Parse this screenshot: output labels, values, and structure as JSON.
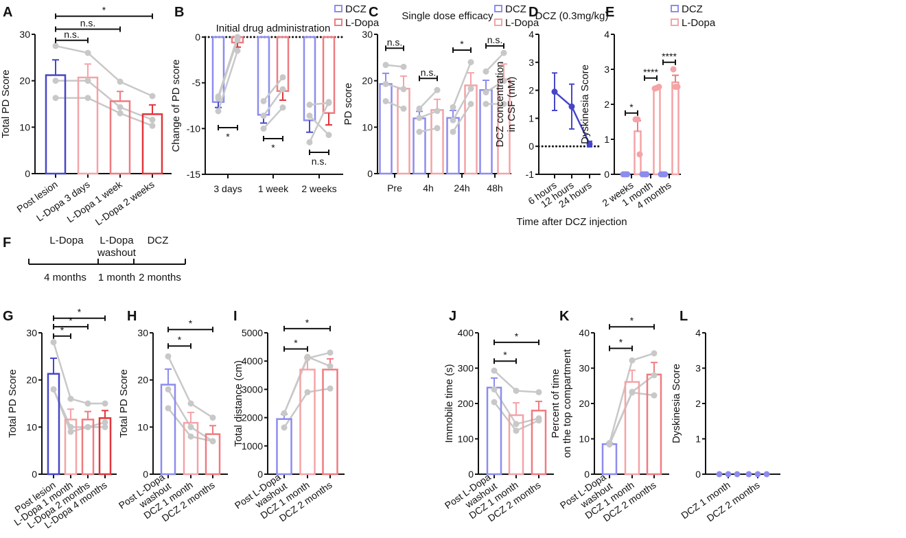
{
  "colors": {
    "dcz_dark": "#4646c8",
    "dcz_light": "#8c8cef",
    "ldopa_light": "#f4a3a6",
    "ldopa_mid": "#ef7b80",
    "ldopa_dark": "#e0353b",
    "subject_points": "#c8c8c8",
    "axis": "#111111"
  },
  "timeline": {
    "panel": "F",
    "phases": [
      {
        "label": [
          "L-Dopa"
        ],
        "duration": "4 months"
      },
      {
        "label": [
          "L-Dopa",
          "washout"
        ],
        "duration": "1 month"
      },
      {
        "label": [
          "DCZ"
        ],
        "duration": "2 months"
      }
    ]
  },
  "chart_data": [
    {
      "panel": "A",
      "type": "bar",
      "ylabel": [
        "Total PD Score"
      ],
      "ylim": [
        0,
        30
      ],
      "yticks": [
        0,
        10,
        20,
        30
      ],
      "categories": [
        [
          "Post lesion"
        ],
        [
          "L-Dopa 3 days"
        ],
        [
          "L-Dopa 1 week"
        ],
        [
          "L-Dopa 2 weeks"
        ]
      ],
      "bars": [
        {
          "mean": 21.2,
          "sem": 3.3,
          "color": "#4646c8"
        },
        {
          "mean": 20.7,
          "sem": 2.9,
          "color": "#f4a3a6"
        },
        {
          "mean": 15.6,
          "sem": 2.1,
          "color": "#ef7b80"
        },
        {
          "mean": 12.8,
          "sem": 2.0,
          "color": "#e0353b"
        }
      ],
      "subjects": [
        [
          27.5,
          26,
          19.8,
          16.7
        ],
        [
          20,
          20,
          14.3,
          11.6
        ],
        [
          16.3,
          16.3,
          13,
          10.3
        ]
      ],
      "brackets": [
        {
          "from": 0,
          "to": 1,
          "y": 28.7,
          "label": "n.s."
        },
        {
          "from": 0,
          "to": 2,
          "y": 31.1,
          "label": "n.s."
        },
        {
          "from": 0,
          "to": 3,
          "y": 33.9,
          "label": "*"
        }
      ]
    },
    {
      "panel": "B",
      "type": "grouped_bar",
      "title": "Initial drug administration",
      "ylabel": [
        "Change of PD score"
      ],
      "ylim": [
        -15,
        0
      ],
      "yticks": [
        -15,
        -10,
        -5,
        0
      ],
      "zero_line": true,
      "paired_lines": true,
      "categories": [
        [
          "3 days"
        ],
        [
          "1 week"
        ],
        [
          "2 weeks"
        ]
      ],
      "series": [
        {
          "name": "DCZ",
          "color": "#8c8cef",
          "err_color": "#4646c8",
          "means": [
            -7.1,
            -8.5,
            -9.1
          ],
          "sem": [
            0.6,
            0.9,
            1.3
          ],
          "points": [
            [
              -6.5,
              -6.7,
              -8.1
            ],
            [
              -7.0,
              -8.6,
              -10.0
            ],
            [
              -7.4,
              -8.6,
              -11.5
            ]
          ]
        },
        {
          "name": "L-Dopa",
          "color": "#ef7b80",
          "err_color": "#e0353b",
          "means": [
            -0.6,
            -5.9,
            -8.3
          ],
          "sem": [
            0.5,
            1.0,
            1.3
          ],
          "points": [
            [
              0,
              -0.3,
              -1.5
            ],
            [
              -4.4,
              -5.7,
              -7.7
            ],
            [
              -7.2,
              -10.7,
              -7.1
            ]
          ]
        }
      ],
      "brackets": [
        {
          "category": 0,
          "y": -9.9,
          "label": "*",
          "label_pos": "below"
        },
        {
          "category": 1,
          "y": -11.1,
          "label": "*",
          "label_pos": "below"
        },
        {
          "category": 2,
          "y": -12.6,
          "label": "n.s.",
          "label_pos": "below"
        }
      ],
      "legend": "top-right"
    },
    {
      "panel": "C",
      "type": "grouped_bar",
      "title": "Single dose efficacy",
      "ylabel": [
        "PD score"
      ],
      "ylim": [
        0,
        30
      ],
      "yticks": [
        0,
        10,
        20,
        30
      ],
      "paired_lines": true,
      "categories": [
        [
          "Pre"
        ],
        [
          "4h"
        ],
        [
          "24h"
        ],
        [
          "48h"
        ]
      ],
      "series": [
        {
          "name": "DCZ",
          "color": "#8c8cef",
          "err_color": "#8c8cef",
          "means": [
            19.3,
            11.9,
            12.0,
            18.0
          ],
          "sem": [
            2.3,
            1.5,
            1.6,
            2.1
          ],
          "points": [
            [
              23.4,
              19.3,
              15.6
            ],
            [
              14,
              12,
              9
            ],
            [
              14.3,
              11.5,
              9
            ]
          ]
        },
        {
          "name": "L-Dopa",
          "color": "#f4a3a6",
          "err_color": "#f4a3a6",
          "means": [
            18.3,
            13.7,
            19.0,
            20.3
          ],
          "sem": [
            2.7,
            2.3,
            2.7,
            3.3
          ],
          "points": [
            [
              23,
              18.2,
              14
            ],
            [
              18,
              13.5,
              9.8
            ],
            [
              24,
              18.3,
              15
            ]
          ]
        }
      ],
      "extra_points": {
        "DCZ": [
          [
            22,
            17.5,
            15
          ]
        ],
        "L-Dopa": [
          [
            26,
            20,
            15
          ]
        ]
      },
      "brackets": [
        {
          "category": 0,
          "y": 27,
          "label": "n.s.",
          "label_pos": "above"
        },
        {
          "category": 1,
          "y": 20.5,
          "label": "n.s.",
          "label_pos": "above"
        },
        {
          "category": 2,
          "y": 26.6,
          "label": "*",
          "label_pos": "above"
        },
        {
          "category": 3,
          "y": 27.5,
          "label": "n.s.",
          "label_pos": "above"
        }
      ],
      "legend": "top-right"
    },
    {
      "panel": "D",
      "type": "line",
      "title": "DCZ (0.3mg/kg)",
      "ylabel": [
        "DCZ concentration",
        "in CSF (nM)"
      ],
      "xlabel": "Time after DCZ injection",
      "ylim": [
        -1,
        4
      ],
      "yticks": [
        -1,
        0,
        1,
        2,
        3,
        4
      ],
      "zero_line": true,
      "categories": [
        [
          "6 hours"
        ],
        [
          "12 hours"
        ],
        [
          "24 hours"
        ]
      ],
      "series": [
        {
          "color": "#4646c8",
          "means": [
            1.95,
            1.42,
            0.08
          ],
          "sem": [
            0.67,
            0.8,
            0.1
          ]
        }
      ]
    },
    {
      "panel": "E",
      "type": "grouped_bar",
      "ylabel": [
        "Dyskinesia Score"
      ],
      "ylim": [
        0,
        4
      ],
      "yticks": [
        0,
        1,
        2,
        3,
        4
      ],
      "paired_lines": false,
      "categories": [
        [
          "2 weeks"
        ],
        [
          "1 month"
        ],
        [
          "4 months"
        ]
      ],
      "series": [
        {
          "name": "DCZ",
          "color": "#8c8cef",
          "err_color": "#8c8cef",
          "point_color": "#8c8cef",
          "means": [
            0,
            0,
            0
          ],
          "sem": [
            0,
            0,
            0
          ],
          "points": [
            [
              0,
              0,
              0
            ],
            [
              0,
              0,
              0
            ],
            [
              0,
              0,
              0
            ]
          ]
        },
        {
          "name": "L-Dopa",
          "color": "#f4a3a6",
          "err_color": "#ef7b80",
          "point_color": "#f4a3a6",
          "means": [
            1.23,
            2.47,
            2.63
          ],
          "sem": [
            0.3,
            0.03,
            0.2
          ],
          "points": [
            [
              1.57,
              1.57,
              0.57
            ],
            [
              2.45,
              2.47,
              2.5
            ],
            [
              3.0,
              2.5,
              2.5
            ]
          ]
        }
      ],
      "brackets": [
        {
          "category": 0,
          "y": 1.75,
          "label": "*",
          "label_pos": "above"
        },
        {
          "category": 1,
          "y": 2.75,
          "label": "****",
          "label_pos": "above"
        },
        {
          "category": 2,
          "y": 3.2,
          "label": "****",
          "label_pos": "above"
        }
      ],
      "legend": "top-right"
    },
    {
      "panel": "G",
      "type": "bar",
      "ylabel": [
        "Total PD Score"
      ],
      "ylim": [
        0,
        30
      ],
      "yticks": [
        0,
        10,
        20,
        30
      ],
      "categories": [
        [
          "Post lesion"
        ],
        [
          "L-Dopa 1 month"
        ],
        [
          "L-Dopa 2 months"
        ],
        [
          "L-Dopa 4 months"
        ]
      ],
      "bars": [
        {
          "mean": 21.3,
          "sem": 3.3,
          "color": "#4646c8"
        },
        {
          "mean": 11.6,
          "sem": 2.2,
          "color": "#f4a3a6"
        },
        {
          "mean": 11.6,
          "sem": 1.7,
          "color": "#ef7b80"
        },
        {
          "mean": 11.9,
          "sem": 1.6,
          "color": "#e0353b"
        }
      ],
      "subjects": [
        [
          28,
          16,
          15,
          15
        ],
        [
          18,
          10,
          10,
          10
        ],
        [
          18,
          9,
          10,
          11
        ]
      ],
      "brackets": [
        {
          "from": 0,
          "to": 1,
          "y": 29.3,
          "label": "*"
        },
        {
          "from": 0,
          "to": 2,
          "y": 31.3,
          "label": "*"
        },
        {
          "from": 0,
          "to": 3,
          "y": 33.1,
          "label": "*"
        }
      ]
    },
    {
      "panel": "H",
      "type": "bar",
      "ylabel": [
        "Total PD Score"
      ],
      "ylim": [
        0,
        30
      ],
      "yticks": [
        0,
        10,
        20,
        30
      ],
      "categories": [
        [
          "Post L-Dopa",
          "washout"
        ],
        [
          "DCZ 1 month"
        ],
        [
          "DCZ 2 months"
        ]
      ],
      "bars": [
        {
          "mean": 19,
          "sem": 3.3,
          "color": "#8c8cef"
        },
        {
          "mean": 10.9,
          "sem": 2.2,
          "color": "#f4a3a6"
        },
        {
          "mean": 8.5,
          "sem": 1.8,
          "color": "#ef7b80"
        }
      ],
      "subjects": [
        [
          25,
          15,
          12
        ],
        [
          18,
          10,
          7
        ],
        [
          14,
          8,
          7
        ]
      ],
      "brackets": [
        {
          "from": 0,
          "to": 1,
          "y": 27.2,
          "label": "*"
        },
        {
          "from": 0,
          "to": 2,
          "y": 30.7,
          "label": "*"
        }
      ]
    },
    {
      "panel": "I",
      "type": "bar",
      "ylabel": [
        "Total distance (cm)"
      ],
      "ylim": [
        0,
        5000
      ],
      "yticks": [
        0,
        1000,
        2000,
        3000,
        4000,
        5000
      ],
      "categories": [
        [
          "Post L-Dopa",
          "washout"
        ],
        [
          "DCZ 1 month"
        ],
        [
          "DCZ 2 months"
        ]
      ],
      "bars": [
        {
          "mean": 1950,
          "sem": 170,
          "color": "#8c8cef"
        },
        {
          "mean": 3700,
          "sem": 420,
          "color": "#f4a3a6"
        },
        {
          "mean": 3700,
          "sem": 380,
          "color": "#ef7b80"
        }
      ],
      "subjects": [
        [
          2150,
          4100,
          4300
        ],
        [
          2150,
          4150,
          3820
        ],
        [
          1650,
          2900,
          3030
        ]
      ],
      "brackets": [
        {
          "from": 0,
          "to": 1,
          "y": 4430,
          "label": "*"
        },
        {
          "from": 0,
          "to": 2,
          "y": 5150,
          "label": "*"
        }
      ]
    },
    {
      "panel": "J",
      "type": "bar",
      "ylabel": [
        "Immobile time (s)"
      ],
      "ylim": [
        0,
        400
      ],
      "yticks": [
        0,
        100,
        200,
        300,
        400
      ],
      "categories": [
        [
          "Post L-Dopa",
          "washout"
        ],
        [
          "DCZ 1 month"
        ],
        [
          "DCZ 2 months"
        ]
      ],
      "bars": [
        {
          "mean": 245,
          "sem": 27,
          "color": "#8c8cef"
        },
        {
          "mean": 167,
          "sem": 35,
          "color": "#f4a3a6"
        },
        {
          "mean": 180,
          "sem": 26,
          "color": "#ef7b80"
        }
      ],
      "subjects": [
        [
          293,
          236,
          232
        ],
        [
          240,
          142,
          158
        ],
        [
          204,
          123,
          152
        ]
      ],
      "brackets": [
        {
          "from": 0,
          "to": 1,
          "y": 320,
          "label": "*"
        },
        {
          "from": 0,
          "to": 2,
          "y": 373,
          "label": "*"
        }
      ]
    },
    {
      "panel": "K",
      "type": "bar",
      "ylabel": [
        "Percent of time",
        "on the top compartment"
      ],
      "ylim": [
        0,
        40
      ],
      "yticks": [
        0,
        10,
        20,
        30,
        40
      ],
      "categories": [
        [
          "Post L-Dopa",
          "washout"
        ],
        [
          "DCZ 1 month"
        ],
        [
          "DCZ 2 months"
        ]
      ],
      "bars": [
        {
          "mean": 8.5,
          "sem": 0.3,
          "color": "#8c8cef"
        },
        {
          "mean": 26.1,
          "sem": 3.3,
          "color": "#f4a3a6"
        },
        {
          "mean": 28.2,
          "sem": 3.4,
          "color": "#ef7b80"
        }
      ],
      "subjects": [
        [
          8.8,
          32.2,
          34.2
        ],
        [
          8.6,
          23.3,
          28
        ],
        [
          8.4,
          23.1,
          22.3
        ]
      ],
      "brackets": [
        {
          "from": 0,
          "to": 1,
          "y": 35.6,
          "label": "*"
        },
        {
          "from": 0,
          "to": 2,
          "y": 41.7,
          "label": "*"
        }
      ]
    },
    {
      "panel": "L",
      "type": "dot",
      "ylabel": [
        "Dyskinesia Score"
      ],
      "ylim": [
        0,
        4
      ],
      "yticks": [
        0,
        1,
        2,
        3,
        4
      ],
      "categories": [
        [
          "DCZ 1 month"
        ],
        [
          "DCZ 2 months"
        ]
      ],
      "points": [
        [
          0,
          0,
          0
        ],
        [
          0,
          0,
          0
        ]
      ],
      "point_color": "#8c8cef"
    }
  ]
}
